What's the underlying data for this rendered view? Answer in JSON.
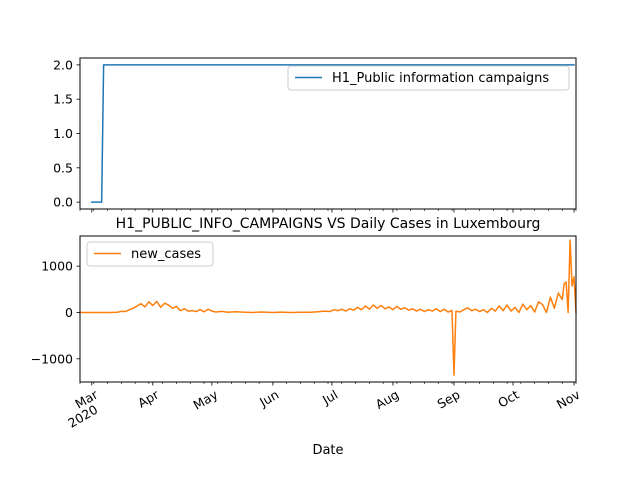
{
  "chart_data": [
    {
      "type": "line",
      "title": "",
      "xlabel": "",
      "ylabel": "",
      "ylim": [
        -0.1,
        2.1
      ],
      "yticks": [
        {
          "value": 0.0,
          "label": "0.0"
        },
        {
          "value": 0.5,
          "label": "0.5"
        },
        {
          "value": 1.0,
          "label": "1.0"
        },
        {
          "value": 1.5,
          "label": "1.5"
        },
        {
          "value": 2.0,
          "label": "2.0"
        }
      ],
      "legend": "upper right",
      "series": [
        {
          "name": "H1_Public information campaigns",
          "color": "#1f77b4",
          "points": [
            [
              "2020-03-01",
              0
            ],
            [
              "2020-03-06",
              0
            ],
            [
              "2020-03-07",
              2
            ],
            [
              "2020-11-01",
              2
            ]
          ]
        }
      ]
    },
    {
      "type": "line",
      "title": "H1_PUBLIC_INFO_CAMPAIGNS VS Daily Cases in Luxembourg",
      "xlabel": "Date",
      "ylabel": "",
      "ylim": [
        -1500,
        1650
      ],
      "xlim": [
        "2020-02-24",
        "2020-11-02"
      ],
      "yticks": [
        {
          "value": -1000,
          "label": "−1000"
        },
        {
          "value": 0,
          "label": "0"
        },
        {
          "value": 1000,
          "label": "1000"
        }
      ],
      "xticks": [
        {
          "date": "2020-03-01",
          "label": "Mar",
          "sublabel": "2020"
        },
        {
          "date": "2020-04-01",
          "label": "Apr"
        },
        {
          "date": "2020-05-01",
          "label": "May"
        },
        {
          "date": "2020-06-01",
          "label": "Jun"
        },
        {
          "date": "2020-07-01",
          "label": "Jul"
        },
        {
          "date": "2020-08-01",
          "label": "Aug"
        },
        {
          "date": "2020-09-01",
          "label": "Sep"
        },
        {
          "date": "2020-10-01",
          "label": "Oct"
        },
        {
          "date": "2020-11-01",
          "label": "Nov"
        }
      ],
      "legend": "upper left",
      "series": [
        {
          "name": "new_cases",
          "color": "#ff7f0e",
          "points": [
            [
              "2020-02-24",
              0
            ],
            [
              "2020-03-01",
              0
            ],
            [
              "2020-03-10",
              0
            ],
            [
              "2020-03-14",
              5
            ],
            [
              "2020-03-16",
              25
            ],
            [
              "2020-03-18",
              20
            ],
            [
              "2020-03-20",
              60
            ],
            [
              "2020-03-22",
              90
            ],
            [
              "2020-03-24",
              140
            ],
            [
              "2020-03-26",
              190
            ],
            [
              "2020-03-28",
              120
            ],
            [
              "2020-03-30",
              230
            ],
            [
              "2020-04-01",
              150
            ],
            [
              "2020-04-03",
              240
            ],
            [
              "2020-04-05",
              110
            ],
            [
              "2020-04-07",
              200
            ],
            [
              "2020-04-09",
              160
            ],
            [
              "2020-04-11",
              90
            ],
            [
              "2020-04-13",
              130
            ],
            [
              "2020-04-15",
              40
            ],
            [
              "2020-04-17",
              80
            ],
            [
              "2020-04-19",
              30
            ],
            [
              "2020-04-21",
              40
            ],
            [
              "2020-04-23",
              20
            ],
            [
              "2020-04-25",
              60
            ],
            [
              "2020-04-27",
              15
            ],
            [
              "2020-04-29",
              70
            ],
            [
              "2020-05-01",
              30
            ],
            [
              "2020-05-03",
              10
            ],
            [
              "2020-05-06",
              25
            ],
            [
              "2020-05-09",
              5
            ],
            [
              "2020-05-13",
              15
            ],
            [
              "2020-05-18",
              5
            ],
            [
              "2020-05-22",
              0
            ],
            [
              "2020-05-26",
              10
            ],
            [
              "2020-06-01",
              0
            ],
            [
              "2020-06-05",
              8
            ],
            [
              "2020-06-10",
              0
            ],
            [
              "2020-06-15",
              5
            ],
            [
              "2020-06-20",
              5
            ],
            [
              "2020-06-24",
              15
            ],
            [
              "2020-06-27",
              30
            ],
            [
              "2020-06-30",
              20
            ],
            [
              "2020-07-02",
              60
            ],
            [
              "2020-07-04",
              40
            ],
            [
              "2020-07-06",
              70
            ],
            [
              "2020-07-08",
              30
            ],
            [
              "2020-07-10",
              80
            ],
            [
              "2020-07-12",
              50
            ],
            [
              "2020-07-14",
              110
            ],
            [
              "2020-07-16",
              60
            ],
            [
              "2020-07-18",
              140
            ],
            [
              "2020-07-20",
              70
            ],
            [
              "2020-07-22",
              160
            ],
            [
              "2020-07-24",
              90
            ],
            [
              "2020-07-26",
              150
            ],
            [
              "2020-07-28",
              80
            ],
            [
              "2020-07-30",
              120
            ],
            [
              "2020-08-01",
              60
            ],
            [
              "2020-08-03",
              130
            ],
            [
              "2020-08-05",
              70
            ],
            [
              "2020-08-07",
              100
            ],
            [
              "2020-08-09",
              50
            ],
            [
              "2020-08-11",
              80
            ],
            [
              "2020-08-13",
              30
            ],
            [
              "2020-08-15",
              70
            ],
            [
              "2020-08-17",
              20
            ],
            [
              "2020-08-19",
              60
            ],
            [
              "2020-08-21",
              30
            ],
            [
              "2020-08-23",
              80
            ],
            [
              "2020-08-25",
              20
            ],
            [
              "2020-08-27",
              70
            ],
            [
              "2020-08-29",
              10
            ],
            [
              "2020-08-31",
              40
            ],
            [
              "2020-09-01",
              -1350
            ],
            [
              "2020-09-02",
              30
            ],
            [
              "2020-09-04",
              10
            ],
            [
              "2020-09-06",
              60
            ],
            [
              "2020-09-08",
              100
            ],
            [
              "2020-09-10",
              40
            ],
            [
              "2020-09-12",
              70
            ],
            [
              "2020-09-14",
              20
            ],
            [
              "2020-09-16",
              60
            ],
            [
              "2020-09-18",
              0
            ],
            [
              "2020-09-20",
              90
            ],
            [
              "2020-09-22",
              30
            ],
            [
              "2020-09-24",
              140
            ],
            [
              "2020-09-26",
              40
            ],
            [
              "2020-09-28",
              160
            ],
            [
              "2020-09-30",
              30
            ],
            [
              "2020-10-02",
              110
            ],
            [
              "2020-10-04",
              0
            ],
            [
              "2020-10-06",
              180
            ],
            [
              "2020-10-08",
              60
            ],
            [
              "2020-10-10",
              150
            ],
            [
              "2020-10-12",
              10
            ],
            [
              "2020-10-14",
              230
            ],
            [
              "2020-10-16",
              170
            ],
            [
              "2020-10-18",
              0
            ],
            [
              "2020-10-20",
              330
            ],
            [
              "2020-10-22",
              90
            ],
            [
              "2020-10-24",
              420
            ],
            [
              "2020-10-26",
              280
            ],
            [
              "2020-10-27",
              620
            ],
            [
              "2020-10-28",
              660
            ],
            [
              "2020-10-29",
              0
            ],
            [
              "2020-10-30",
              1560
            ],
            [
              "2020-10-31",
              570
            ],
            [
              "2020-11-01",
              770
            ],
            [
              "2020-11-02",
              0
            ]
          ]
        }
      ]
    }
  ]
}
